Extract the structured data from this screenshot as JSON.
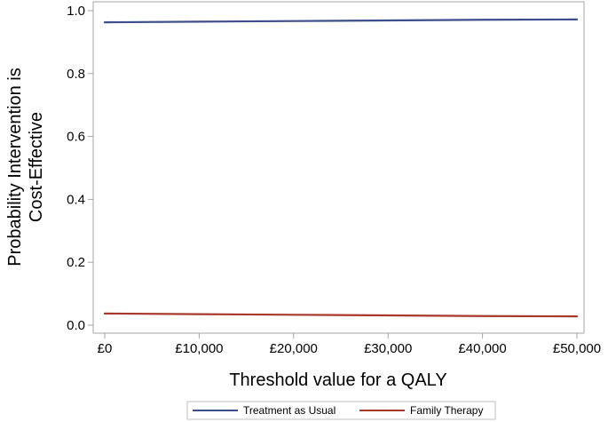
{
  "chart_data": {
    "type": "line",
    "title": "",
    "xlabel": "Threshold value for a QALY",
    "ylabel": [
      "Probability Intervention is",
      "Cost-Effective"
    ],
    "x": [
      0,
      10000,
      20000,
      30000,
      40000,
      50000
    ],
    "xlim": [
      0,
      50000
    ],
    "ylim": [
      0,
      1
    ],
    "x_ticks": [
      0,
      10000,
      20000,
      30000,
      40000,
      50000
    ],
    "x_tick_labels": [
      "£0",
      "£10,000",
      "£20,000",
      "£30,000",
      "£40,000",
      "£50,000"
    ],
    "y_ticks": [
      0,
      0.2,
      0.4,
      0.6,
      0.8,
      1.0
    ],
    "y_tick_labels": [
      "0.0",
      "0.2",
      "0.4",
      "0.6",
      "0.8",
      "1.0"
    ],
    "grid": false,
    "legend_position": "bottom",
    "series": [
      {
        "name": "Treatment as Usual",
        "color": "#3c4f8c",
        "values": [
          0.963,
          0.965,
          0.967,
          0.969,
          0.971,
          0.972
        ]
      },
      {
        "name": "Family Therapy",
        "color": "#a8382b",
        "values": [
          0.037,
          0.035,
          0.033,
          0.031,
          0.029,
          0.028
        ]
      }
    ]
  }
}
